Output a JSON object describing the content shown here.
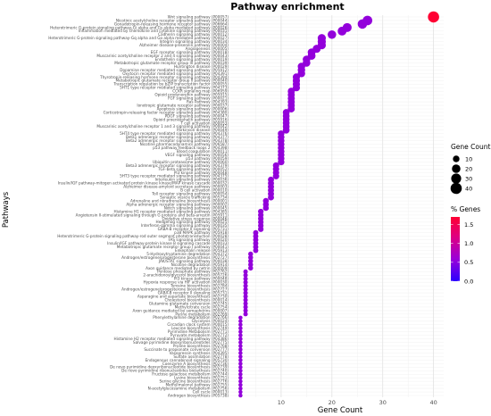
{
  "chart_data": {
    "type": "scatter",
    "title": "Pathway enrichment",
    "xlabel": "Gene Count",
    "ylabel": "Pathways",
    "xlim": [
      0,
      42
    ],
    "xticks": [
      10,
      20,
      30,
      40
    ],
    "grid": true,
    "legend_size": {
      "title": "Gene Count",
      "entries": [
        10,
        20,
        30,
        40
      ]
    },
    "legend_color": {
      "title": "% Genes",
      "ticks": [
        1.5,
        1.0,
        0.5,
        0.0
      ],
      "low_color": "#2b00ff",
      "high_color": "#ff0033",
      "range": [
        0,
        1.7
      ]
    },
    "points": [
      {
        "label": "Wnt signaling pathway (P00057)",
        "x": 40,
        "pct": 1.7
      },
      {
        "label": "Nicotinic acetylcholine receptor signaling pathway (P00044)",
        "x": 27,
        "pct": 0.55
      },
      {
        "label": "Gonadotropin-releasing hormone receptor pathway (P06664)",
        "x": 26,
        "pct": 0.55
      },
      {
        "label": "Heterotrimeric G-protein signaling pathway-Gi alpha and Gs alpha mediated pathway (P00026)",
        "x": 23,
        "pct": 0.55
      },
      {
        "label": "Inflammation mediated by chemokine and cytokine signaling pathway (P00031)",
        "x": 22,
        "pct": 0.55
      },
      {
        "label": "Cadherin signaling pathway (P00012)",
        "x": 20,
        "pct": 0.55
      },
      {
        "label": "Heterotrimeric G-protein signaling pathway-Gq alpha and Go alpha mediated pathway (P00027)",
        "x": 18,
        "pct": 0.55
      },
      {
        "label": "Integrin signalling pathway (P00034)",
        "x": 18,
        "pct": 0.55
      },
      {
        "label": "Alzheimer disease-presenilin pathway (P00004)",
        "x": 18,
        "pct": 0.55
      },
      {
        "label": "Angiogenesis (P00005)",
        "x": 17,
        "pct": 0.55
      },
      {
        "label": "EGF receptor signaling pathway (P00018)",
        "x": 16,
        "pct": 0.55
      },
      {
        "label": "Muscarinic acetylcholine receptor 2 and 4 signaling pathway (P00043)",
        "x": 16,
        "pct": 0.55
      },
      {
        "label": "Endothelin signaling pathway (P00019)",
        "x": 15,
        "pct": 0.55
      },
      {
        "label": "Metabotropic glutamate receptor group III pathway (P00039)",
        "x": 15,
        "pct": 0.55
      },
      {
        "label": "Huntington disease (P00029)",
        "x": 14,
        "pct": 0.55
      },
      {
        "label": "Dopamine receptor mediated signaling pathway (P05912)",
        "x": 14,
        "pct": 0.55
      },
      {
        "label": "Oxytocin receptor mediated signaling pathway (P04391)",
        "x": 14,
        "pct": 0.55
      },
      {
        "label": "Thyrotropin-releasing hormone receptor signaling pathway (P04394)",
        "x": 13,
        "pct": 0.55
      },
      {
        "label": "Metabotropic glutamate receptor group II pathway (P00040)",
        "x": 13,
        "pct": 0.55
      },
      {
        "label": "Transcription regulation by bZIP transcription factor (P00055)",
        "x": 13,
        "pct": 0.55
      },
      {
        "label": "5HT1 type receptor mediated signaling pathway (P04373)",
        "x": 13,
        "pct": 0.55
      },
      {
        "label": "CCKR signaling map (P06959)",
        "x": 12,
        "pct": 0.55
      },
      {
        "label": "Opioid prodynorphin pathway (P05915)",
        "x": 12,
        "pct": 0.55
      },
      {
        "label": "FGF signaling pathway (P00021)",
        "x": 12,
        "pct": 0.55
      },
      {
        "label": "Ras Pathway (P04393)",
        "x": 12,
        "pct": 0.55
      },
      {
        "label": "Ionotropic glutamate receptor pathway (P00037)",
        "x": 12,
        "pct": 0.55
      },
      {
        "label": "Apoptosis signaling pathway (P00006)",
        "x": 12,
        "pct": 0.55
      },
      {
        "label": "Corticotropin-releasing factor receptor signaling pathway (P04380)",
        "x": 11,
        "pct": 0.55
      },
      {
        "label": "PDGF signaling pathway (P00047)",
        "x": 11,
        "pct": 0.55
      },
      {
        "label": "Opioid proenkephalin pathway (P05916)",
        "x": 11,
        "pct": 0.55
      },
      {
        "label": "T cell activation (P00053)",
        "x": 11,
        "pct": 0.55
      },
      {
        "label": "Muscarinic acetylcholine receptor 1 and 3 signaling pathway (P00042)",
        "x": 11,
        "pct": 0.55
      },
      {
        "label": "Parkinson disease (P00049)",
        "x": 11,
        "pct": 0.55
      },
      {
        "label": "5HT4 type receptor mediated signaling pathway (P04376)",
        "x": 10,
        "pct": 0.55
      },
      {
        "label": "Beta1 adrenergic receptor signaling pathway (P04377)",
        "x": 10,
        "pct": 0.55
      },
      {
        "label": "Beta2 adrenergic receptor signaling pathway (P04378)",
        "x": 10,
        "pct": 0.55
      },
      {
        "label": "Nicotine pharmacodynamics pathway (P06587)",
        "x": 10,
        "pct": 0.55
      },
      {
        "label": "p53 pathway feedback loops 2 (P04398)",
        "x": 10,
        "pct": 0.55
      },
      {
        "label": "Blood coagulation (P00011)",
        "x": 10,
        "pct": 0.55
      },
      {
        "label": "VEGF signaling pathway (P00056)",
        "x": 10,
        "pct": 0.55
      },
      {
        "label": "p53 pathway (P00059)",
        "x": 10,
        "pct": 0.55
      },
      {
        "label": "Ubiquitin proteasome pathway (P00060)",
        "x": 10,
        "pct": 0.55
      },
      {
        "label": "Beta3 adrenergic receptor signaling pathway (P04379)",
        "x": 9,
        "pct": 0.55
      },
      {
        "label": "TGF-beta signaling pathway (P00052)",
        "x": 9,
        "pct": 0.55
      },
      {
        "label": "PI3 kinase pathway (P00048)",
        "x": 9,
        "pct": 0.55
      },
      {
        "label": "5HT3 type receptor mediated signaling pathway (P04375)",
        "x": 9,
        "pct": 0.55
      },
      {
        "label": "Interleukin signaling pathway (P00036)",
        "x": 8,
        "pct": 0.55
      },
      {
        "label": "Insulin/IGF pathway-mitogen activated protein kinase kinase/MAP kinase cascade (P00032)",
        "x": 8,
        "pct": 0.55
      },
      {
        "label": "Alzheimer disease-amyloid secretase pathway (P00003)",
        "x": 8,
        "pct": 0.55
      },
      {
        "label": "B cell activation (P00010)",
        "x": 8,
        "pct": 0.55
      },
      {
        "label": "Toll receptor signaling pathway (P00054)",
        "x": 8,
        "pct": 0.55
      },
      {
        "label": "Synaptic vesicle trafficking (P05734)",
        "x": 8,
        "pct": 0.55
      },
      {
        "label": "Adrenaline and noradrenaline biosynthesis (P00001)",
        "x": 7,
        "pct": 0.55
      },
      {
        "label": "Alpha adrenergic receptor signaling pathway (P00002)",
        "x": 7,
        "pct": 0.55
      },
      {
        "label": "Notch signaling pathway (P00045)",
        "x": 7,
        "pct": 0.55
      },
      {
        "label": "Histamine H1 receptor mediated signaling pathway (P04385)",
        "x": 6,
        "pct": 0.55
      },
      {
        "label": "Angiotensin II-stimulated signaling through G proteins and beta-arrestin (P05911)",
        "x": 6,
        "pct": 0.55
      },
      {
        "label": "Oxidative stress response (P00046)",
        "x": 6,
        "pct": 0.55
      },
      {
        "label": "Hedgehog signaling pathway (P00025)",
        "x": 6,
        "pct": 0.55
      },
      {
        "label": "Interferon-gamma signaling pathway (P00035)",
        "x": 6,
        "pct": 0.55
      },
      {
        "label": "GABA-B receptor II signaling (P05731)",
        "x": 6,
        "pct": 0.55
      },
      {
        "label": "p38 MAPK pathway (P05918)",
        "x": 5,
        "pct": 0.55
      },
      {
        "label": "Heterotrimeric G-protein signaling pathway-rod outer segment phototransduction (P00028)",
        "x": 5,
        "pct": 0.55
      },
      {
        "label": "FAS signaling pathway (P00020)",
        "x": 5,
        "pct": 0.55
      },
      {
        "label": "Insulin/IGF pathway-protein kinase B signaling cascade (P00033)",
        "x": 5,
        "pct": 0.55
      },
      {
        "label": "Metabotropic glutamate receptor group I pathway (P00041)",
        "x": 5,
        "pct": 0.55
      },
      {
        "label": "Enkephalin release (P05913)",
        "x": 5,
        "pct": 0.55
      },
      {
        "label": "5-Hydroxytryptamine degredation (P04372)",
        "x": 4,
        "pct": 0.55
      },
      {
        "label": "Androgen/estrogene/progesterone biosynthesis (P02727)",
        "x": 4,
        "pct": 0.55
      },
      {
        "label": "JAK/STAT signaling pathway (P00038)",
        "x": 4,
        "pct": 0.55
      },
      {
        "label": "Nicotine degradation (P05914)",
        "x": 4,
        "pct": 0.55
      },
      {
        "label": "Axon guidance mediated by netrin (P00009)",
        "x": 4,
        "pct": 0.55
      },
      {
        "label": "Pentose phosphate pathway (P02762)",
        "x": 3,
        "pct": 0.55
      },
      {
        "label": "2-arachidonoylglycerol biosynthesis (P05726)",
        "x": 3,
        "pct": 0.55
      },
      {
        "label": "PI3 kinase pathway (P00048)",
        "x": 3,
        "pct": 0.55
      },
      {
        "label": "Hypoxia response via HIF activation (P00030)",
        "x": 3,
        "pct": 0.55
      },
      {
        "label": "Tyrosine biosynthesis (P02784)",
        "x": 3,
        "pct": 0.55
      },
      {
        "label": "Androgen/estrogene/progesterone biosynthesis (P02727)",
        "x": 3,
        "pct": 0.55
      },
      {
        "label": "GABA-B receptor II signaling (P05731)",
        "x": 3,
        "pct": 0.55
      },
      {
        "label": "Asparagine and aspartate biosynthesis (P02730)",
        "x": 3,
        "pct": 0.55
      },
      {
        "label": "Cholesterol biosynthesis (P00014)",
        "x": 3,
        "pct": 0.55
      },
      {
        "label": "Glutamine glutamate conversion (P02745)",
        "x": 3,
        "pct": 0.55
      },
      {
        "label": "Methylcitrate cycle (P02754)",
        "x": 3,
        "pct": 0.55
      },
      {
        "label": "Axon guidance mediated by semaphorins (P00007)",
        "x": 3,
        "pct": 0.55
      },
      {
        "label": "Purine metabolism (P02769)",
        "x": 3,
        "pct": 0.55
      },
      {
        "label": "Phenylethylamine degradation (P02766)",
        "x": 2,
        "pct": 0.55
      },
      {
        "label": "Glycolysis (P00024)",
        "x": 2,
        "pct": 0.55
      },
      {
        "label": "Circadian clock system (P00015)",
        "x": 2,
        "pct": 0.55
      },
      {
        "label": "Leucine biosynthesis (P02749)",
        "x": 2,
        "pct": 0.55
      },
      {
        "label": "Pyrimidine Metabolism (P02771)",
        "x": 2,
        "pct": 0.55
      },
      {
        "label": "Pyruvate metabolism (P02772)",
        "x": 2,
        "pct": 0.55
      },
      {
        "label": "Histamine H2 receptor mediated signaling pathway (P04386)",
        "x": 2,
        "pct": 0.55
      },
      {
        "label": "Salvage pyrimidine deoxyribonucleotides (P02775)",
        "x": 2,
        "pct": 0.55
      },
      {
        "label": "Proline biosynthesis (P02768)",
        "x": 2,
        "pct": 0.55
      },
      {
        "label": "Succinate to propionate conversion (P02777)",
        "x": 2,
        "pct": 0.55
      },
      {
        "label": "Vasopressin synthesis (P04395)",
        "x": 2,
        "pct": 0.55
      },
      {
        "label": "Sulfate assimilation (P02778)",
        "x": 2,
        "pct": 0.55
      },
      {
        "label": "Endogenous cannabinoid signaling (P05730)",
        "x": 2,
        "pct": 0.55
      },
      {
        "label": "Coenzyme A biosynthesis (P02736)",
        "x": 2,
        "pct": 0.55
      },
      {
        "label": "De novo pyrimidine deoxyribonucleotide biosynthesis (P02739)",
        "x": 2,
        "pct": 0.55
      },
      {
        "label": "De novo pyrimidine ribonucleotides biosythesis (P02740)",
        "x": 2,
        "pct": 0.55
      },
      {
        "label": "Fructose galactose metabolism (P02744)",
        "x": 2,
        "pct": 0.55
      },
      {
        "label": "Lysine biosynthesis (P02751)",
        "x": 2,
        "pct": 0.55
      },
      {
        "label": "Serine glycine biosynthesis (P02776)",
        "x": 2,
        "pct": 0.55
      },
      {
        "label": "Methylmalonyl pathway (P02755)",
        "x": 2,
        "pct": 0.55
      },
      {
        "label": "N-acetylglucosamine metabolism (P02756)",
        "x": 2,
        "pct": 0.55
      },
      {
        "label": "Cell cycle (P00013)",
        "x": 2,
        "pct": 0.55
      },
      {
        "label": "Androgen biosynthesis (P05738)",
        "x": 2,
        "pct": 0.55
      }
    ]
  }
}
